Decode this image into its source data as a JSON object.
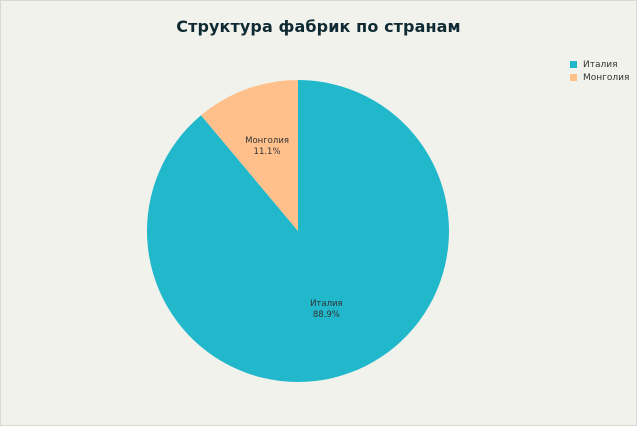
{
  "chart_data": {
    "type": "pie",
    "title": "Структура фабрик по странам",
    "categories": [
      "Италия",
      "Монголия"
    ],
    "values": [
      88.9,
      11.1
    ],
    "value_labels": [
      "88.9%",
      "11.1%"
    ],
    "colors": [
      "#22b8cc",
      "#ffc08c"
    ],
    "start_angle_deg": 0,
    "direction": "clockwise",
    "legend_position": "top-right"
  }
}
